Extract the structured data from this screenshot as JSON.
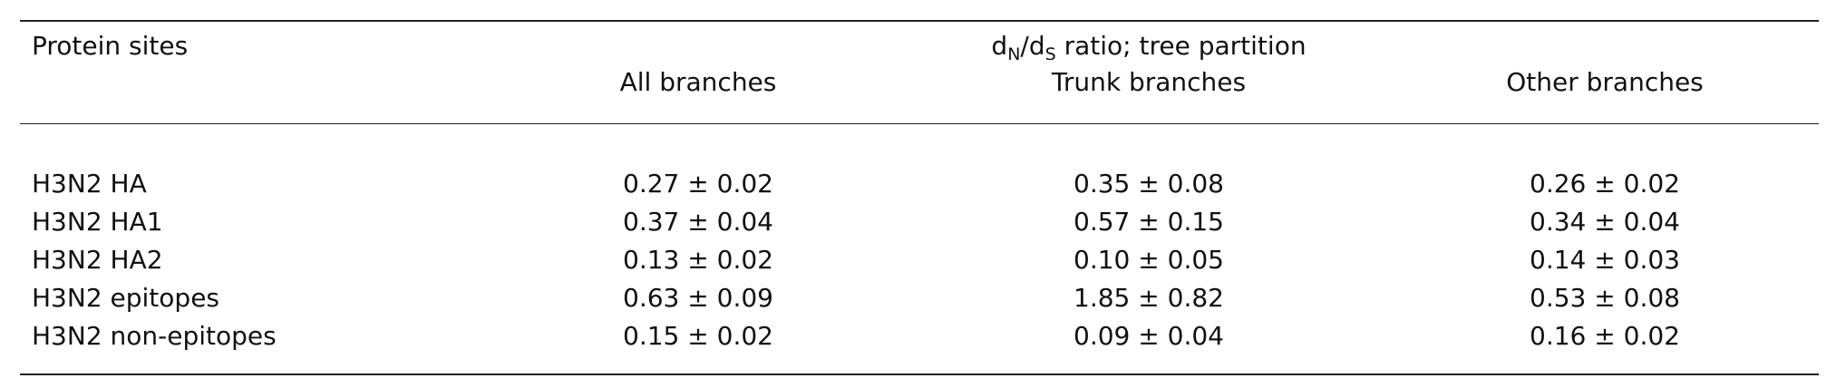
{
  "table": {
    "header": {
      "row_label_header": "Protein sites",
      "group_header": {
        "d": "d",
        "sub_n": "N",
        "slash": "/",
        "d2": "d",
        "sub_s": "S",
        "rest": " ratio; tree partition"
      },
      "columns": [
        "All branches",
        "Trunk branches",
        "Other branches"
      ]
    },
    "rows": [
      {
        "label": "H3N2 HA",
        "all": "0.27 ± 0.02",
        "trunk": "0.35 ± 0.08",
        "other": "0.26 ± 0.02"
      },
      {
        "label": "H3N2 HA1",
        "all": "0.37 ± 0.04",
        "trunk": "0.57 ± 0.15",
        "other": "0.34 ± 0.04"
      },
      {
        "label": "H3N2 HA2",
        "all": "0.13 ± 0.02",
        "trunk": "0.10 ± 0.05",
        "other": "0.14 ± 0.03"
      },
      {
        "label": "H3N2 epitopes",
        "all": "0.63 ± 0.09",
        "trunk": "1.85 ± 0.82",
        "other": "0.53 ± 0.08"
      },
      {
        "label": "H3N2 non-epitopes",
        "all": "0.15 ± 0.02",
        "trunk": "0.09 ± 0.04",
        "other": "0.16 ± 0.02"
      }
    ]
  }
}
